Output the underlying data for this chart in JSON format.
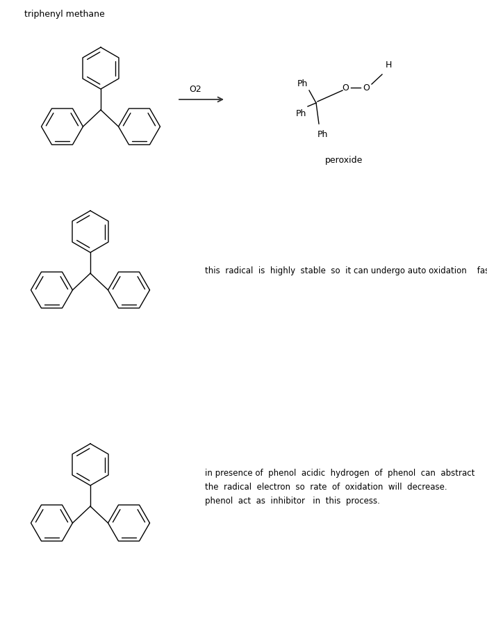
{
  "bg_color": "#ffffff",
  "text_color": "#000000",
  "line_color": "#000000",
  "figsize": [
    7.01,
    9.04
  ],
  "dpi": 100,
  "title_text": "triphenyl methane",
  "label1_text": "this  radical  is  highly  stable  so  it can undergo auto oxidation    fastly",
  "label2_line1": "in presence of  phenol  acidic  hydrogen  of  phenol  can  abstract",
  "label2_line2": "the  radical  electron  so  rate  of  oxidation  will  decrease.",
  "label2_line3": "phenol  act  as  inhibitor   in  this  process.",
  "o2_text": "O2",
  "peroxide_text": "peroxide",
  "arrow_color": "#333333",
  "font_size": 9,
  "lw": 1.0
}
